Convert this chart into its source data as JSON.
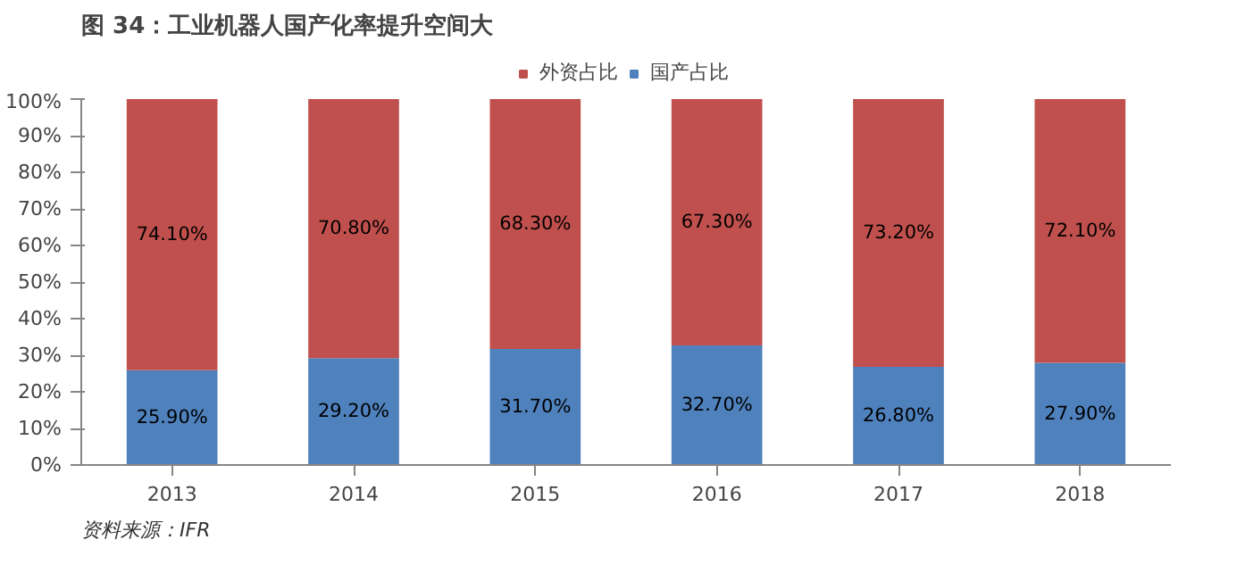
{
  "chart_data": {
    "type": "bar",
    "title": "图 34：工业机器人国产化率提升空间大",
    "categories": [
      "2013",
      "2014",
      "2015",
      "2016",
      "2017",
      "2018"
    ],
    "stacked": true,
    "series": [
      {
        "name": "国产占比",
        "color": "#4f81bd",
        "values": [
          25.9,
          29.2,
          31.7,
          32.7,
          26.8,
          27.9
        ],
        "value_labels": [
          "25.90%",
          "29.20%",
          "31.70%",
          "32.70%",
          "26.80%",
          "27.90%"
        ]
      },
      {
        "name": "外资占比",
        "color": "#c0504d",
        "values": [
          74.1,
          70.8,
          68.3,
          67.3,
          73.2,
          72.1
        ],
        "value_labels": [
          "74.10%",
          "70.80%",
          "68.30%",
          "67.30%",
          "73.20%",
          "72.10%"
        ]
      }
    ],
    "ylim": [
      0,
      100
    ],
    "yticks": [
      {
        "value": 0,
        "label": "0%"
      },
      {
        "value": 10,
        "label": "10%"
      },
      {
        "value": 20,
        "label": "20%"
      },
      {
        "value": 30,
        "label": "30%"
      },
      {
        "value": 40,
        "label": "40%"
      },
      {
        "value": 50,
        "label": "50%"
      },
      {
        "value": 60,
        "label": "60%"
      },
      {
        "value": 70,
        "label": "70%"
      },
      {
        "value": 80,
        "label": "80%"
      },
      {
        "value": 90,
        "label": "90%"
      },
      {
        "value": 100,
        "label": "100%"
      }
    ],
    "legend": "top",
    "annotations": [
      "资料来源：IFR"
    ]
  }
}
